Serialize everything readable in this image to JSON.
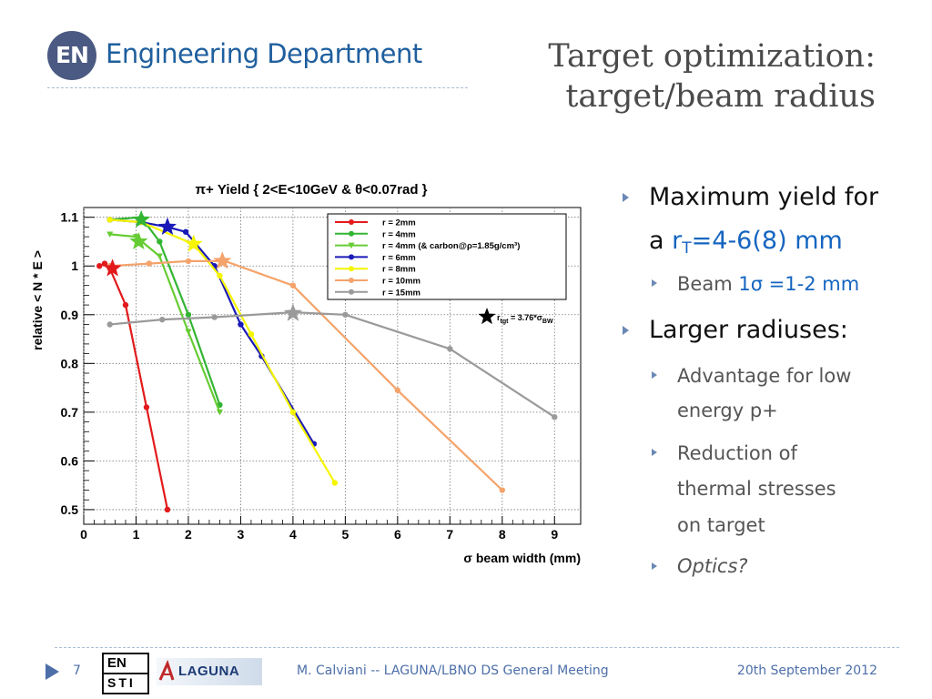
{
  "header": {
    "logo_text": "EN",
    "department": "Engineering Department",
    "title_line1": "Target optimization:",
    "title_line2": "target/beam radius"
  },
  "bullets": {
    "b1_line1": "Maximum yield for",
    "b1_line2_prefix": "a ",
    "b1_r": "r",
    "b1_sub": "T",
    "b1_value": "=4-6(8) mm",
    "b1_1_label": "Beam ",
    "b1_1_value": "1σ =1-2 mm",
    "b2": "Larger radiuses:",
    "b2_1_line1": "Advantage for low",
    "b2_1_line2": "energy p+",
    "b2_2_line1": "Reduction of",
    "b2_2_line2": "thermal stresses",
    "b2_2_line3": "on target",
    "b2_3": "Optics?"
  },
  "footer": {
    "page_number": "7",
    "ensti_top": "EN",
    "ensti_bottom": "STI",
    "laguna_logo_text": "LAGUNA",
    "text": "M. Calviani -- LAGUNA/LBNO DS General Meeting",
    "date": "20th September 2012"
  },
  "chart_data": {
    "type": "line",
    "title": "π+ Yield { 2<E<10GeV & θ<0.07rad }",
    "xlabel": "σ beam width (mm)",
    "ylabel": "relative < N * E >",
    "xlim": [
      0,
      9.5
    ],
    "ylim": [
      0.47,
      1.12
    ],
    "x_ticks": [
      0,
      1,
      2,
      3,
      4,
      5,
      6,
      7,
      8,
      9
    ],
    "y_ticks": [
      0.5,
      0.6,
      0.7,
      0.8,
      0.9,
      1,
      1.1
    ],
    "grid": true,
    "legend_position": "top-right",
    "series": [
      {
        "name": "r = 2mm",
        "color": "#e31a1c",
        "x": [
          0.3,
          0.4,
          0.5,
          0.8,
          1.2,
          1.6
        ],
        "y": [
          1.0,
          1.005,
          0.995,
          0.92,
          0.71,
          0.5
        ],
        "star": [
          0.55,
          0.995
        ]
      },
      {
        "name": "r = 4mm",
        "color": "#33b533",
        "x": [
          0.5,
          1.1,
          1.45,
          2.0,
          2.6
        ],
        "y": [
          1.095,
          1.1,
          1.05,
          0.9,
          0.715
        ],
        "star": [
          1.1,
          1.095
        ]
      },
      {
        "name": "r = 4mm (& carbon@ρ=1.85g/cm³)",
        "color": "#66cc33",
        "x": [
          0.5,
          1.0,
          1.45,
          2.0,
          2.6
        ],
        "y": [
          1.065,
          1.06,
          1.02,
          0.865,
          0.7
        ],
        "star": [
          1.05,
          1.05
        ]
      },
      {
        "name": "r = 6mm",
        "color": "#1a1ab8",
        "x": [
          0.5,
          1.1,
          1.6,
          1.95,
          2.5,
          3.0,
          3.4,
          4.4
        ],
        "y": [
          1.095,
          1.09,
          1.08,
          1.07,
          1.0,
          0.88,
          0.815,
          0.635
        ],
        "star": [
          1.6,
          1.08
        ]
      },
      {
        "name": "r = 8mm",
        "color": "#f5f500",
        "x": [
          0.5,
          1.1,
          2.1,
          2.6,
          3.2,
          4.0,
          4.8
        ],
        "y": [
          1.095,
          1.09,
          1.045,
          0.98,
          0.86,
          0.7,
          0.555
        ],
        "star": [
          2.1,
          1.045
        ]
      },
      {
        "name": "r = 10mm",
        "color": "#f4a36b",
        "x": [
          0.5,
          1.25,
          2.0,
          2.7,
          4.0,
          6.0,
          8.0
        ],
        "y": [
          1.0,
          1.005,
          1.01,
          1.01,
          0.96,
          0.745,
          0.54
        ],
        "star": [
          2.65,
          1.01
        ]
      },
      {
        "name": "r = 15mm",
        "color": "#9a9a9a",
        "x": [
          0.5,
          1.5,
          2.5,
          4.0,
          5.0,
          7.0,
          9.0
        ],
        "y": [
          0.88,
          0.89,
          0.895,
          0.905,
          0.9,
          0.83,
          0.69
        ],
        "star": [
          4.0,
          0.903
        ]
      }
    ],
    "annotation": {
      "text_main": "r",
      "text_sub1": "tgt",
      "text_mid": " = 3.76*σ",
      "text_sub2": "BW"
    }
  },
  "colors": {
    "title_gray": "#4a4a4a",
    "department_blue": "#1f5f9e",
    "footer_blue": "#4d6fa9",
    "bullet_arrow": "#6b88b5"
  }
}
